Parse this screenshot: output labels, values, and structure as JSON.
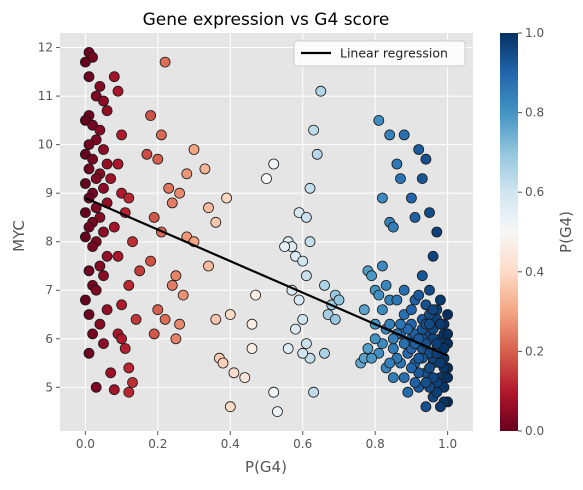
{
  "chart_data": {
    "type": "scatter",
    "title": "Gene expression vs G4 score",
    "xlabel": "P(G4)",
    "ylabel": "MYC",
    "xlim": [
      -0.07,
      1.07
    ],
    "ylim": [
      4.1,
      12.3
    ],
    "xticks": [
      "0.0",
      "0.2",
      "0.4",
      "0.6",
      "0.8",
      "1.0"
    ],
    "xtick_values": [
      0,
      0.2,
      0.4,
      0.6,
      0.8,
      1.0
    ],
    "yticks": [
      "5",
      "6",
      "7",
      "8",
      "9",
      "10",
      "11",
      "12"
    ],
    "ytick_values": [
      5,
      6,
      7,
      8,
      9,
      10,
      11,
      12
    ],
    "grid": true,
    "legend": {
      "placement": "top-right",
      "label": "Linear regression"
    },
    "regression": {
      "x": [
        0.0,
        1.0
      ],
      "y": [
        8.9,
        5.65
      ]
    },
    "colorbar": {
      "label": "P(G4)",
      "ticks": [
        "0.0",
        "0.2",
        "0.4",
        "0.6",
        "0.8",
        "1.0"
      ],
      "tick_values": [
        0,
        0.2,
        0.4,
        0.6,
        0.8,
        1.0
      ],
      "colormap": "RdBu"
    },
    "points": [
      [
        0.01,
        11.9
      ],
      [
        0.02,
        11.8
      ],
      [
        0.0,
        11.7
      ],
      [
        0.01,
        11.4
      ],
      [
        0.04,
        11.2
      ],
      [
        0.03,
        11.0
      ],
      [
        0.05,
        10.9
      ],
      [
        0.06,
        10.7
      ],
      [
        0.01,
        10.6
      ],
      [
        0.0,
        10.5
      ],
      [
        0.02,
        10.4
      ],
      [
        0.04,
        10.3
      ],
      [
        0.03,
        10.1
      ],
      [
        0.01,
        10.0
      ],
      [
        0.05,
        9.9
      ],
      [
        0.0,
        9.8
      ],
      [
        0.02,
        9.7
      ],
      [
        0.06,
        9.6
      ],
      [
        0.01,
        9.5
      ],
      [
        0.04,
        9.4
      ],
      [
        0.03,
        9.3
      ],
      [
        0.0,
        9.2
      ],
      [
        0.05,
        9.1
      ],
      [
        0.02,
        9.0
      ],
      [
        0.01,
        8.9
      ],
      [
        0.06,
        8.8
      ],
      [
        0.03,
        8.7
      ],
      [
        0.0,
        8.6
      ],
      [
        0.04,
        8.5
      ],
      [
        0.02,
        8.4
      ],
      [
        0.01,
        8.3
      ],
      [
        0.05,
        8.2
      ],
      [
        0.0,
        8.1
      ],
      [
        0.03,
        8.0
      ],
      [
        0.02,
        7.9
      ],
      [
        0.06,
        7.7
      ],
      [
        0.04,
        7.5
      ],
      [
        0.01,
        7.4
      ],
      [
        0.05,
        7.3
      ],
      [
        0.02,
        7.1
      ],
      [
        0.03,
        7.0
      ],
      [
        0.0,
        6.8
      ],
      [
        0.06,
        6.6
      ],
      [
        0.01,
        6.5
      ],
      [
        0.04,
        6.3
      ],
      [
        0.02,
        6.1
      ],
      [
        0.05,
        5.9
      ],
      [
        0.01,
        5.7
      ],
      [
        0.03,
        5.0
      ],
      [
        0.07,
        5.3
      ],
      [
        0.08,
        11.4
      ],
      [
        0.09,
        11.1
      ],
      [
        0.1,
        10.2
      ],
      [
        0.09,
        9.6
      ],
      [
        0.07,
        9.3
      ],
      [
        0.1,
        9.0
      ],
      [
        0.12,
        8.9
      ],
      [
        0.11,
        8.6
      ],
      [
        0.08,
        8.3
      ],
      [
        0.13,
        8.0
      ],
      [
        0.09,
        7.7
      ],
      [
        0.15,
        7.4
      ],
      [
        0.12,
        7.1
      ],
      [
        0.1,
        6.7
      ],
      [
        0.14,
        6.4
      ],
      [
        0.09,
        6.1
      ],
      [
        0.11,
        5.8
      ],
      [
        0.12,
        5.4
      ],
      [
        0.13,
        5.1
      ],
      [
        0.08,
        4.95
      ],
      [
        0.12,
        4.9
      ],
      [
        0.1,
        6.0
      ],
      [
        0.18,
        10.6
      ],
      [
        0.21,
        10.2
      ],
      [
        0.22,
        11.7
      ],
      [
        0.17,
        9.8
      ],
      [
        0.2,
        9.7
      ],
      [
        0.23,
        9.1
      ],
      [
        0.26,
        9.0
      ],
      [
        0.24,
        8.8
      ],
      [
        0.19,
        8.5
      ],
      [
        0.21,
        8.2
      ],
      [
        0.18,
        7.6
      ],
      [
        0.25,
        7.3
      ],
      [
        0.24,
        7.1
      ],
      [
        0.27,
        6.9
      ],
      [
        0.2,
        6.6
      ],
      [
        0.22,
        6.4
      ],
      [
        0.26,
        6.3
      ],
      [
        0.19,
        6.1
      ],
      [
        0.25,
        6.0
      ],
      [
        0.28,
        9.4
      ],
      [
        0.3,
        9.9
      ],
      [
        0.33,
        9.5
      ],
      [
        0.34,
        8.7
      ],
      [
        0.36,
        8.4
      ],
      [
        0.28,
        8.1
      ],
      [
        0.3,
        8.0
      ],
      [
        0.34,
        7.5
      ],
      [
        0.36,
        6.4
      ],
      [
        0.4,
        6.5
      ],
      [
        0.39,
        8.9
      ],
      [
        0.37,
        5.6
      ],
      [
        0.38,
        5.5
      ],
      [
        0.41,
        5.3
      ],
      [
        0.44,
        5.2
      ],
      [
        0.4,
        4.6
      ],
      [
        0.47,
        6.9
      ],
      [
        0.46,
        6.3
      ],
      [
        0.46,
        5.8
      ],
      [
        0.52,
        9.6
      ],
      [
        0.5,
        9.3
      ],
      [
        0.52,
        4.9
      ],
      [
        0.53,
        4.5
      ],
      [
        0.56,
        8.0
      ],
      [
        0.57,
        7.9
      ],
      [
        0.55,
        7.9
      ],
      [
        0.58,
        7.7
      ],
      [
        0.59,
        8.6
      ],
      [
        0.61,
        8.5
      ],
      [
        0.62,
        8.0
      ],
      [
        0.6,
        7.6
      ],
      [
        0.61,
        7.3
      ],
      [
        0.57,
        7.0
      ],
      [
        0.59,
        6.8
      ],
      [
        0.6,
        6.4
      ],
      [
        0.58,
        6.2
      ],
      [
        0.56,
        5.8
      ],
      [
        0.61,
        5.9
      ],
      [
        0.62,
        5.6
      ],
      [
        0.63,
        4.9
      ],
      [
        0.6,
        5.7
      ],
      [
        0.64,
        9.8
      ],
      [
        0.62,
        9.1
      ],
      [
        0.63,
        10.3
      ],
      [
        0.65,
        11.1
      ],
      [
        0.66,
        7.1
      ],
      [
        0.68,
        6.7
      ],
      [
        0.67,
        6.5
      ],
      [
        0.69,
        6.4
      ],
      [
        0.66,
        5.7
      ],
      [
        0.69,
        6.9
      ],
      [
        0.7,
        6.8
      ],
      [
        0.76,
        5.5
      ],
      [
        0.77,
        5.6
      ],
      [
        0.78,
        7.4
      ],
      [
        0.79,
        7.3
      ],
      [
        0.8,
        6.3
      ],
      [
        0.81,
        10.5
      ],
      [
        0.84,
        10.2
      ],
      [
        0.82,
        8.9
      ],
      [
        0.84,
        8.4
      ],
      [
        0.85,
        8.3
      ],
      [
        0.82,
        7.5
      ],
      [
        0.83,
        7.1
      ],
      [
        0.84,
        6.8
      ],
      [
        0.86,
        9.6
      ],
      [
        0.87,
        9.3
      ],
      [
        0.88,
        10.2
      ],
      [
        0.87,
        6.1
      ],
      [
        0.9,
        8.9
      ],
      [
        0.91,
        8.5
      ],
      [
        0.92,
        9.9
      ],
      [
        0.93,
        9.3
      ],
      [
        0.94,
        9.7
      ],
      [
        0.95,
        8.6
      ],
      [
        0.97,
        8.2
      ],
      [
        0.93,
        7.3
      ],
      [
        0.96,
        7.7
      ],
      [
        0.88,
        5.2
      ],
      [
        0.9,
        6.0
      ],
      [
        0.92,
        5.0
      ],
      [
        0.94,
        4.6
      ],
      [
        0.96,
        4.8
      ],
      [
        0.98,
        5.2
      ],
      [
        0.91,
        6.8
      ],
      [
        0.93,
        6.4
      ],
      [
        0.95,
        7.0
      ],
      [
        0.97,
        6.6
      ],
      [
        0.99,
        6.3
      ],
      [
        1.0,
        5.9
      ],
      [
        0.98,
        5.7
      ],
      [
        0.96,
        5.5
      ],
      [
        0.94,
        5.3
      ],
      [
        0.99,
        5.0
      ],
      [
        1.0,
        4.7
      ],
      [
        0.97,
        4.9
      ],
      [
        0.95,
        6.1
      ],
      [
        0.93,
        5.8
      ],
      [
        0.91,
        5.5
      ],
      [
        0.89,
        5.7
      ],
      [
        0.92,
        6.9
      ],
      [
        0.94,
        6.7
      ],
      [
        0.96,
        6.2
      ],
      [
        0.98,
        6.0
      ],
      [
        1.0,
        5.4
      ],
      [
        0.99,
        5.6
      ],
      [
        0.97,
        5.1
      ],
      [
        0.95,
        5.0
      ],
      [
        0.93,
        6.0
      ],
      [
        0.9,
        6.3
      ],
      [
        0.88,
        6.5
      ],
      [
        0.86,
        6.1
      ],
      [
        0.85,
        5.8
      ],
      [
        0.83,
        5.4
      ],
      [
        0.82,
        5.9
      ],
      [
        0.85,
        5.2
      ],
      [
        0.87,
        5.5
      ],
      [
        0.89,
        4.9
      ],
      [
        0.91,
        5.1
      ],
      [
        0.86,
        6.8
      ],
      [
        0.88,
        7.0
      ],
      [
        0.9,
        6.6
      ],
      [
        0.99,
        4.7
      ],
      [
        0.98,
        4.6
      ],
      [
        0.97,
        5.8
      ],
      [
        0.96,
        5.6
      ],
      [
        0.95,
        5.4
      ],
      [
        1.0,
        6.5
      ],
      [
        0.99,
        6.1
      ],
      [
        0.98,
        6.8
      ],
      [
        0.97,
        6.4
      ],
      [
        0.96,
        6.0
      ],
      [
        0.95,
        5.7
      ],
      [
        0.94,
        5.9
      ],
      [
        0.93,
        5.6
      ],
      [
        0.92,
        5.3
      ],
      [
        0.91,
        6.1
      ],
      [
        0.9,
        5.8
      ],
      [
        0.89,
        6.2
      ],
      [
        0.88,
        5.9
      ],
      [
        0.87,
        6.3
      ],
      [
        0.86,
        5.6
      ],
      [
        0.85,
        6.0
      ],
      [
        0.84,
        5.5
      ],
      [
        0.83,
        6.2
      ],
      [
        0.81,
        5.7
      ],
      [
        0.8,
        6.0
      ],
      [
        0.79,
        5.6
      ],
      [
        0.78,
        5.8
      ],
      [
        0.77,
        6.6
      ],
      [
        0.8,
        7.0
      ],
      [
        0.82,
        6.6
      ],
      [
        0.84,
        6.3
      ],
      [
        0.81,
        6.9
      ],
      [
        0.95,
        6.5
      ],
      [
        0.93,
        6.2
      ],
      [
        0.91,
        5.9
      ],
      [
        0.99,
        5.8
      ],
      [
        1.0,
        6.1
      ],
      [
        0.98,
        6.3
      ],
      [
        0.96,
        6.6
      ],
      [
        0.94,
        6.3
      ],
      [
        0.92,
        6.0
      ],
      [
        0.97,
        5.9
      ],
      [
        0.95,
        6.3
      ],
      [
        0.99,
        5.4
      ],
      [
        0.98,
        5.5
      ],
      [
        0.97,
        5.7
      ],
      [
        1.0,
        5.2
      ],
      [
        0.96,
        5.2
      ],
      [
        0.94,
        5.1
      ],
      [
        0.92,
        5.6
      ],
      [
        0.9,
        5.4
      ]
    ]
  }
}
